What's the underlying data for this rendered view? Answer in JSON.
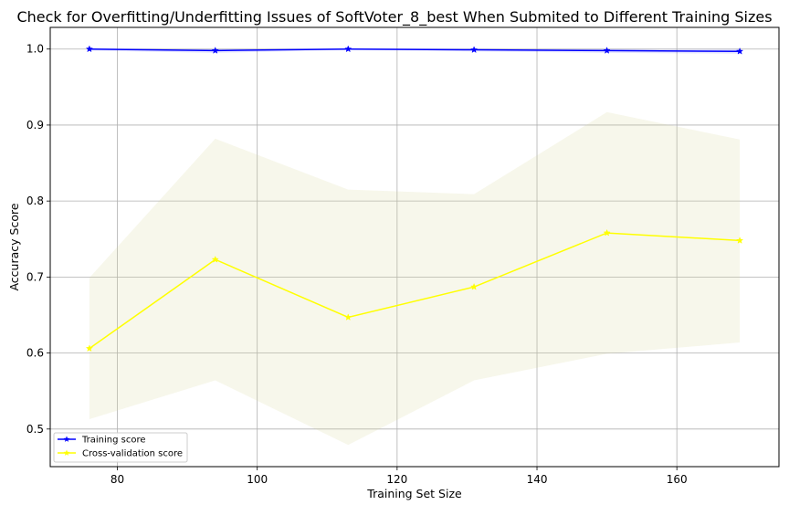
{
  "chart_data": {
    "type": "line",
    "title": "Check for Overfitting/Underfitting Issues of SoftVoter_8_best When Submited to Different Training Sizes",
    "xlabel": "Training Set Size",
    "ylabel": "Accuracy Score",
    "xlim": [
      70.4,
      174.6
    ],
    "ylim": [
      0.4505,
      1.0285
    ],
    "xticks": [
      80,
      100,
      120,
      140,
      160
    ],
    "yticks": [
      0.5,
      0.6,
      0.7,
      0.8,
      0.9,
      1.0
    ],
    "xtick_labels": [
      "80",
      "100",
      "120",
      "140",
      "160"
    ],
    "ytick_labels": [
      "0.5",
      "0.6",
      "0.7",
      "0.8",
      "0.9",
      "1.0"
    ],
    "grid": true,
    "legend_position": "lower-left",
    "x": [
      76,
      94,
      113,
      131,
      150,
      169
    ],
    "series": [
      {
        "name": "Training score",
        "color": "#0000ff",
        "marker": "star",
        "values": [
          1.0,
          0.998,
          1.0,
          0.999,
          0.998,
          0.997
        ],
        "band_low": [
          0.998,
          0.995,
          0.999,
          0.997,
          0.995,
          0.994
        ],
        "band_high": [
          1.0,
          1.0,
          1.0,
          1.0,
          1.0,
          1.0
        ],
        "band_color": "#0000ff"
      },
      {
        "name": "Cross-validation score",
        "color": "#ffff00",
        "marker": "star",
        "values": [
          0.606,
          0.723,
          0.647,
          0.687,
          0.758,
          0.748
        ],
        "band_low": [
          0.513,
          0.564,
          0.479,
          0.564,
          0.599,
          0.614
        ],
        "band_high": [
          0.699,
          0.882,
          0.815,
          0.809,
          0.917,
          0.881
        ],
        "band_color": "#d9d99a"
      }
    ]
  }
}
